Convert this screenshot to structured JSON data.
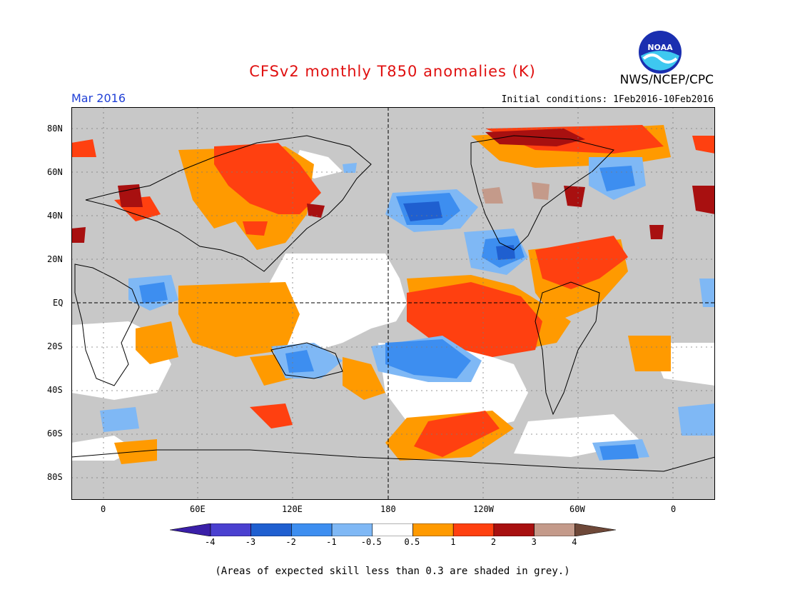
{
  "header": {
    "title": "CFSv2 monthly T850 anomalies (K)",
    "period": "Mar 2016",
    "initial_conditions": "Initial conditions: 1Feb2016-10Feb2016",
    "agency": "NWS/NCEP/CPC",
    "logo_text": "NOAA"
  },
  "map": {
    "projection": "equirectangular",
    "lat_labels": [
      "80N",
      "60N",
      "40N",
      "20N",
      "EQ",
      "20S",
      "40S",
      "60S",
      "80S"
    ],
    "lon_labels": [
      "0",
      "60E",
      "120E",
      "180",
      "120W",
      "60W",
      "0"
    ],
    "reference_lines": [
      "equator",
      "dateline"
    ],
    "skill_mask_color": "#c8c8c8",
    "features": [
      {
        "name": "warm-anomaly-equatorial-east-pacific",
        "level": "1 to 2"
      },
      {
        "name": "warm-anomaly-eurasia",
        "level": "1 to 2"
      },
      {
        "name": "warm-anomaly-caribbean",
        "level": "1 to 2"
      },
      {
        "name": "warm-anomaly-arctic",
        "level": "3"
      },
      {
        "name": "cold-anomaly-north-pacific",
        "level": "-1 to -2"
      },
      {
        "name": "cold-anomaly-south-pacific",
        "level": "-1 to -2"
      },
      {
        "name": "cold-anomaly-mexico",
        "level": "-1 to -2"
      },
      {
        "name": "cold-anomaly-east-africa",
        "level": "-1"
      }
    ]
  },
  "colorbar": {
    "labels": [
      "-4",
      "-3",
      "-2",
      "-1",
      "-0.5",
      "0.5",
      "1",
      "2",
      "3",
      "4"
    ],
    "colors": [
      "#3a1fa8",
      "#4a40d0",
      "#1f5fd0",
      "#3d8ef0",
      "#7fb8f5",
      "#ffffff",
      "#ff9a00",
      "#ff4010",
      "#a81010",
      "#c49a8a",
      "#6e4838"
    ]
  },
  "footnote": "(Areas of expected skill less than 0.3 are shaded in grey.)"
}
